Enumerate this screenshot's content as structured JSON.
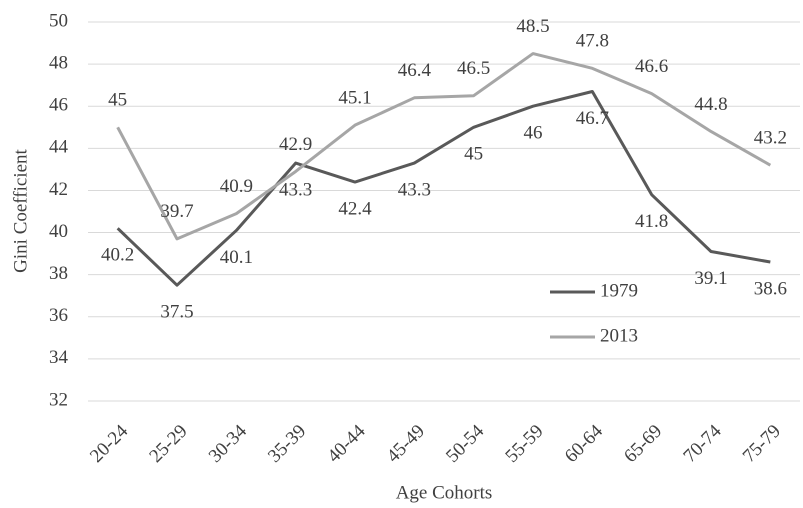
{
  "chart_data": {
    "type": "line",
    "y_label": "Gini Coefficient",
    "x_label": "Age Cohorts",
    "categories": [
      "20-24",
      "25-29",
      "30-34",
      "35-39",
      "40-44",
      "45-49",
      "50-54",
      "55-59",
      "60-64",
      "65-69",
      "70-74",
      "75-79"
    ],
    "series": [
      {
        "name": "1979",
        "color": "#595959",
        "values": [
          40.2,
          37.5,
          40.1,
          43.3,
          42.4,
          43.3,
          45,
          46,
          46.7,
          41.8,
          39.1,
          38.6
        ]
      },
      {
        "name": "2013",
        "color": "#a6a6a6",
        "values": [
          45,
          39.7,
          40.9,
          42.9,
          45.1,
          46.4,
          46.5,
          48.5,
          47.8,
          46.6,
          44.8,
          43.2
        ]
      }
    ],
    "ylim": [
      32,
      50
    ],
    "yticks": [
      32,
      34,
      36,
      38,
      40,
      42,
      44,
      46,
      48,
      50
    ],
    "grid": true,
    "legend": "right"
  }
}
